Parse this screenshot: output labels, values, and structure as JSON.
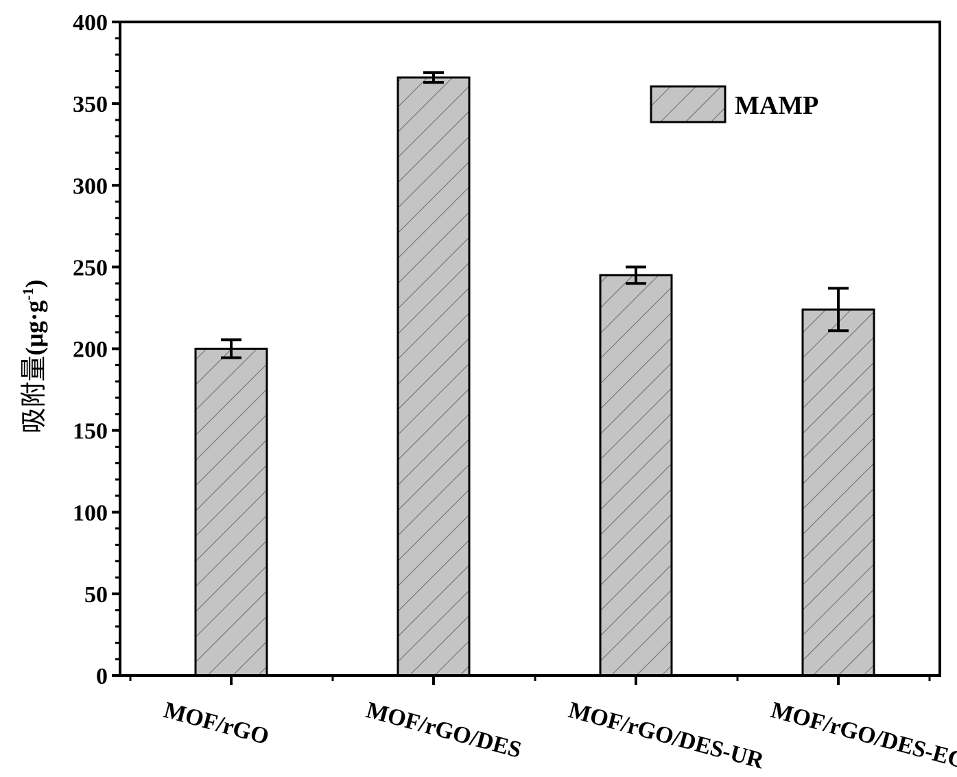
{
  "chart_data": {
    "type": "bar",
    "title": "",
    "xlabel": "",
    "ylabel": "吸附量(μg·g⁻¹)",
    "ylabel_main": "吸附量",
    "ylabel_unit": "(μg·g",
    "ylabel_sup": "-1",
    "ylabel_close": ")",
    "ylim": [
      0,
      400
    ],
    "yticks": [
      0,
      50,
      100,
      150,
      200,
      250,
      300,
      350,
      400
    ],
    "categories": [
      "MOF/rGO",
      "MOF/rGO/DES",
      "MOF/rGO/DES-UR",
      "MOF/rGO/DES-EG"
    ],
    "series": [
      {
        "name": "MAMP",
        "values": [
          200,
          366,
          245,
          224
        ],
        "errors": [
          5.5,
          3,
          5,
          13
        ]
      }
    ],
    "legend_position": "top-right",
    "grid": false,
    "bar_color": "#c4c4c4",
    "edge_color": "#000000"
  }
}
